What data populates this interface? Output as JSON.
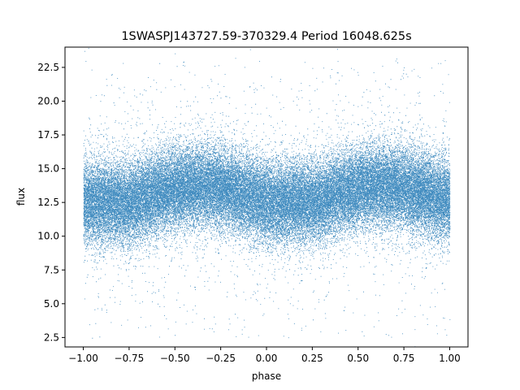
{
  "chart_data": {
    "type": "scatter",
    "title": "1SWASPJ143727.59-370329.4 Period 16048.625s",
    "xlabel": "phase",
    "ylabel": "flux",
    "xlim": [
      -1.1,
      1.1
    ],
    "ylim": [
      1.8,
      24.0
    ],
    "xticks": [
      -1.0,
      -0.75,
      -0.5,
      -0.25,
      0.0,
      0.25,
      0.5,
      0.75,
      1.0
    ],
    "xtick_labels": [
      "−1.00",
      "−0.75",
      "−0.50",
      "−0.25",
      "0.00",
      "0.25",
      "0.50",
      "0.75",
      "1.00"
    ],
    "yticks": [
      2.5,
      5.0,
      7.5,
      10.0,
      12.5,
      15.0,
      17.5,
      20.0,
      22.5
    ],
    "ytick_labels": [
      "2.5",
      "5.0",
      "7.5",
      "10.0",
      "12.5",
      "15.0",
      "17.5",
      "20.0",
      "22.5"
    ],
    "grid": false,
    "point_color": "#1f77b4",
    "series": [
      {
        "x_range": [
          -1.0,
          1.0
        ],
        "point_count": 60000,
        "profile_phase": [
          -1.0,
          -0.75,
          -0.5,
          -0.35,
          -0.25,
          0.0,
          0.25,
          0.5,
          0.6,
          0.75,
          1.0
        ],
        "profile_median_flux": [
          12.6,
          12.5,
          13.6,
          13.8,
          13.6,
          12.6,
          12.5,
          13.6,
          13.8,
          13.6,
          12.6
        ],
        "flux_spread": 1.5,
        "outlier_flux_range": [
          2.5,
          23.0
        ]
      }
    ]
  }
}
